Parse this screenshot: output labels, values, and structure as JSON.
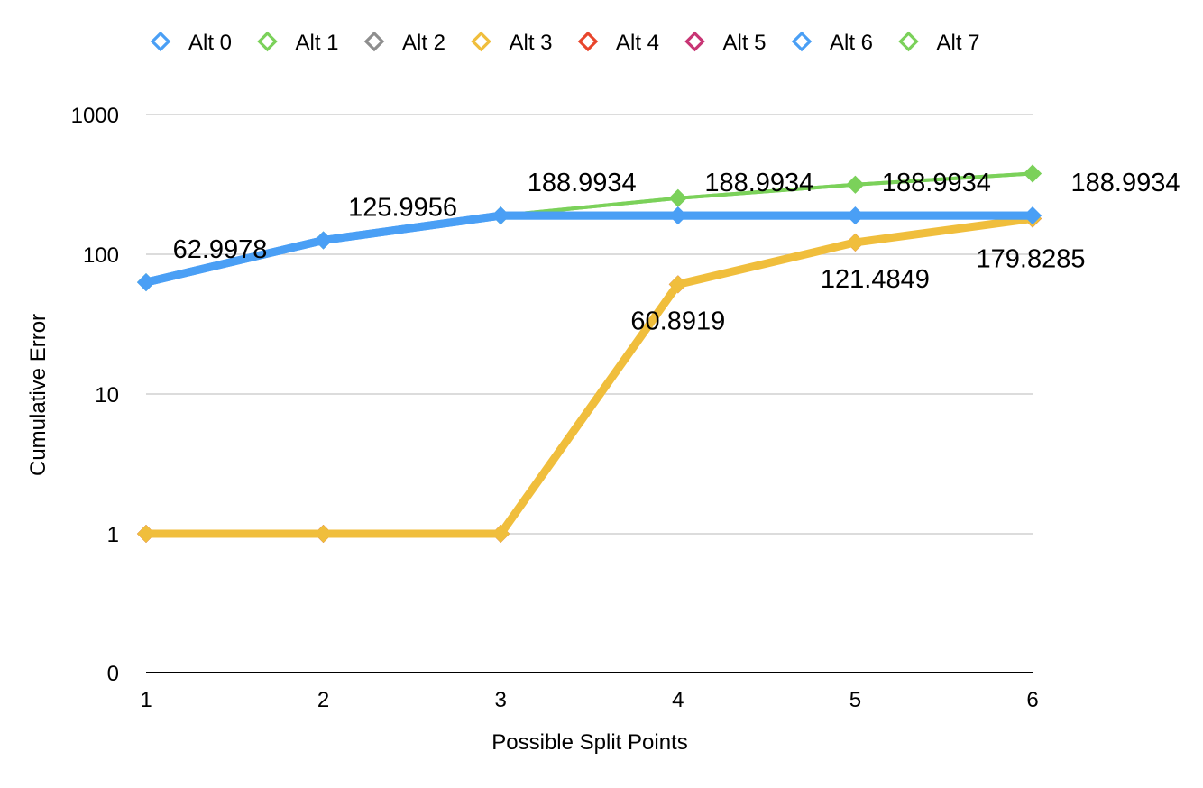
{
  "chart_data": {
    "type": "line",
    "title": "",
    "xlabel": "Possible Split Points",
    "ylabel": "Cumulative Error",
    "x": [
      1,
      2,
      3,
      4,
      5,
      6
    ],
    "x_tick_labels": [
      "1",
      "2",
      "3",
      "4",
      "5",
      "6"
    ],
    "y_scale": "log",
    "y_tick_labels": [
      "0",
      "1",
      "10",
      "100",
      "1000"
    ],
    "ylim": [
      0,
      1000
    ],
    "grid": true,
    "legend_position": "top",
    "series": [
      {
        "name": "Alt 0",
        "color": "#4A9FF5",
        "values": [
          62.9978,
          125.9956,
          188.9934,
          188.9934,
          188.9934,
          188.9934
        ]
      },
      {
        "name": "Alt 1",
        "color": "#7BD15A",
        "values": [
          62.9978,
          125.9956,
          188.9934,
          251.9912,
          314.989,
          377.9868
        ]
      },
      {
        "name": "Alt 2",
        "color": "#8E8E8E",
        "values": [
          1,
          1,
          1,
          60.8919,
          121.4849,
          179.8285
        ]
      },
      {
        "name": "Alt 3",
        "color": "#F0BE3C",
        "values": [
          1,
          1,
          1,
          60.8919,
          121.4849,
          179.8285
        ]
      },
      {
        "name": "Alt 4",
        "color": "#E8452C",
        "values": [
          1,
          1,
          1,
          60.8919,
          121.4849,
          179.8285
        ]
      },
      {
        "name": "Alt 5",
        "color": "#C83574",
        "values": [
          1,
          1,
          1,
          60.8919,
          121.4849,
          179.8285
        ]
      },
      {
        "name": "Alt 6",
        "color": "#4A9FF5",
        "values": [
          62.9978,
          125.9956,
          188.9934,
          188.9934,
          188.9934,
          188.9934
        ]
      },
      {
        "name": "Alt 7",
        "color": "#7BD15A",
        "values": [
          62.9978,
          125.9956,
          188.9934,
          251.9912,
          314.989,
          377.9868
        ]
      }
    ],
    "data_labels": [
      {
        "text": "62.9978",
        "x": 1,
        "y": 62.9978
      },
      {
        "text": "125.9956",
        "x": 2,
        "y": 125.9956
      },
      {
        "text": "188.9934",
        "x": 3,
        "y": 188.9934
      },
      {
        "text": "188.9934",
        "x": 4,
        "y": 188.9934
      },
      {
        "text": "188.9934",
        "x": 5,
        "y": 188.9934
      },
      {
        "text": "188.9934",
        "x": 6,
        "y": 188.9934
      },
      {
        "text": "60.8919",
        "x": 4,
        "y": 60.8919
      },
      {
        "text": "121.4849",
        "x": 5,
        "y": 121.4849
      },
      {
        "text": "179.8285",
        "x": 6,
        "y": 179.8285
      }
    ]
  }
}
